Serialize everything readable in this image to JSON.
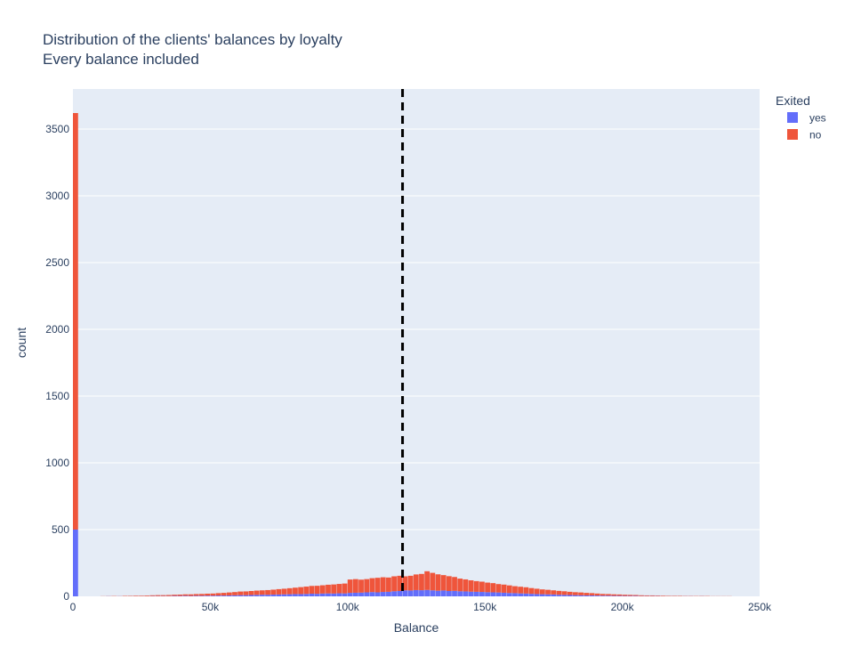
{
  "chart_data": {
    "type": "bar",
    "barmode": "stack",
    "title": "Distribution of the clients' balances by loyalty",
    "subtitle": "Every balance included",
    "xlabel": "Balance",
    "ylabel": "count",
    "xlim": [
      0,
      250000
    ],
    "ylim": [
      0,
      3800
    ],
    "bin_width": 2000,
    "x_ticks": [
      0,
      50000,
      100000,
      150000,
      200000,
      250000
    ],
    "x_tick_labels": [
      "0",
      "50k",
      "100k",
      "150k",
      "200k",
      "250k"
    ],
    "y_ticks": [
      0,
      500,
      1000,
      1500,
      2000,
      2500,
      3000,
      3500
    ],
    "y_tick_labels": [
      "0",
      "500",
      "1000",
      "1500",
      "2000",
      "2500",
      "3000",
      "3500"
    ],
    "grid": true,
    "background": "#e5ecf6",
    "legend": {
      "title": "Exited",
      "placement": "top-right",
      "entries": [
        {
          "label": "yes",
          "color": "#636efa"
        },
        {
          "label": "no",
          "color": "#ef553b"
        }
      ]
    },
    "reference_line": {
      "x": 120000,
      "style": "dashed",
      "color": "#000000"
    },
    "x": [
      0,
      10000,
      12000,
      14000,
      16000,
      18000,
      20000,
      22000,
      24000,
      26000,
      28000,
      30000,
      32000,
      34000,
      36000,
      38000,
      40000,
      42000,
      44000,
      46000,
      48000,
      50000,
      52000,
      54000,
      56000,
      58000,
      60000,
      62000,
      64000,
      66000,
      68000,
      70000,
      72000,
      74000,
      76000,
      78000,
      80000,
      82000,
      84000,
      86000,
      88000,
      90000,
      92000,
      94000,
      96000,
      98000,
      100000,
      102000,
      104000,
      106000,
      108000,
      110000,
      112000,
      114000,
      116000,
      118000,
      120000,
      122000,
      124000,
      126000,
      128000,
      130000,
      132000,
      134000,
      136000,
      138000,
      140000,
      142000,
      144000,
      146000,
      148000,
      150000,
      152000,
      154000,
      156000,
      158000,
      160000,
      162000,
      164000,
      166000,
      168000,
      170000,
      172000,
      174000,
      176000,
      178000,
      180000,
      182000,
      184000,
      186000,
      188000,
      190000,
      192000,
      194000,
      196000,
      198000,
      200000,
      202000,
      204000,
      206000,
      208000,
      210000,
      212000,
      214000,
      216000,
      218000,
      220000,
      222000,
      224000,
      226000,
      228000,
      230000,
      232000,
      234000,
      236000,
      238000
    ],
    "series": [
      {
        "name": "yes",
        "values": [
          500,
          0,
          1,
          0,
          1,
          0,
          1,
          1,
          1,
          1,
          2,
          2,
          2,
          2,
          3,
          3,
          4,
          3,
          4,
          4,
          5,
          5,
          6,
          6,
          7,
          8,
          9,
          9,
          10,
          11,
          12,
          12,
          13,
          14,
          15,
          16,
          17,
          17,
          18,
          20,
          19,
          21,
          22,
          21,
          23,
          22,
          26,
          27,
          28,
          30,
          32,
          30,
          33,
          34,
          38,
          40,
          45,
          44,
          47,
          46,
          48,
          45,
          42,
          44,
          40,
          41,
          38,
          37,
          35,
          34,
          33,
          31,
          30,
          29,
          27,
          25,
          24,
          22,
          21,
          19,
          17,
          16,
          15,
          14,
          12,
          11,
          10,
          9,
          8,
          7,
          7,
          6,
          5,
          5,
          4,
          4,
          3,
          3,
          3,
          2,
          2,
          2,
          2,
          1,
          1,
          1,
          1,
          1,
          1,
          0,
          1,
          0,
          0,
          0,
          0,
          0
        ]
      },
      {
        "name": "no",
        "values": [
          3120,
          1,
          1,
          2,
          1,
          3,
          3,
          4,
          4,
          5,
          6,
          7,
          7,
          8,
          9,
          10,
          11,
          12,
          13,
          14,
          15,
          16,
          18,
          20,
          22,
          24,
          27,
          28,
          30,
          32,
          33,
          35,
          37,
          40,
          42,
          45,
          48,
          52,
          55,
          58,
          60,
          62,
          65,
          68,
          70,
          74,
          100,
          102,
          97,
          99,
          104,
          109,
          110,
          107,
          112,
          114,
          105,
          110,
          117,
          122,
          140,
          131,
          123,
          115,
          111,
          104,
          95,
          90,
          85,
          80,
          77,
          72,
          69,
          63,
          61,
          57,
          52,
          50,
          47,
          43,
          40,
          36,
          34,
          31,
          29,
          27,
          24,
          22,
          21,
          19,
          17,
          15,
          13,
          12,
          11,
          10,
          9,
          8,
          7,
          6,
          5,
          5,
          4,
          4,
          3,
          3,
          3,
          2,
          2,
          2,
          2,
          2,
          1,
          1,
          1,
          1
        ]
      }
    ]
  }
}
